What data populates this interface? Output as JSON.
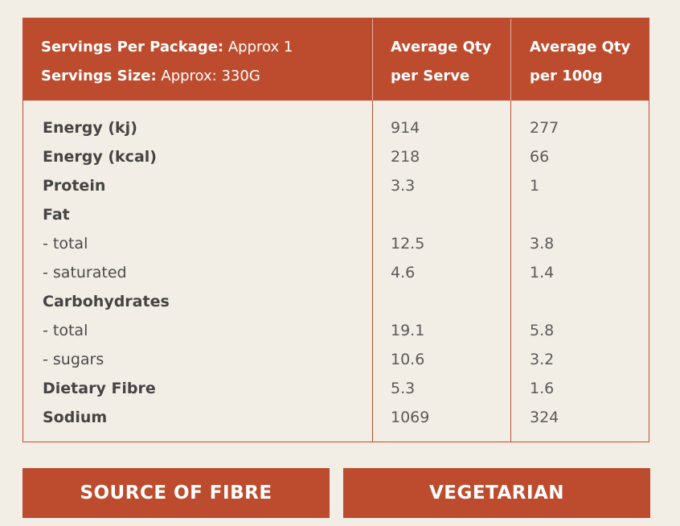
{
  "header": {
    "servings_per_package_label": "Servings Per Package:",
    "servings_per_package_value": "Approx 1",
    "serving_size_label": "Servings Size:",
    "serving_size_value": "Approx: 330G",
    "col1_line1": "Average Qty",
    "col1_line2": "per Serve",
    "col2_line1": "Average Qty",
    "col2_line2": "per 100g"
  },
  "rows": [
    {
      "name": "Energy (kj)",
      "bold": true,
      "per_serve": "914",
      "per_100g": "277"
    },
    {
      "name": "Energy (kcal)",
      "bold": true,
      "per_serve": "218",
      "per_100g": "66"
    },
    {
      "name": "Protein",
      "bold": true,
      "per_serve": "3.3",
      "per_100g": "1"
    },
    {
      "name": "Fat",
      "bold": true,
      "per_serve": "",
      "per_100g": ""
    },
    {
      "name": "- total",
      "bold": false,
      "per_serve": "12.5",
      "per_100g": "3.8"
    },
    {
      "name": "- saturated",
      "bold": false,
      "per_serve": "4.6",
      "per_100g": "1.4"
    },
    {
      "name": "Carbohydrates",
      "bold": true,
      "per_serve": "",
      "per_100g": ""
    },
    {
      "name": "- total",
      "bold": false,
      "per_serve": "19.1",
      "per_100g": "5.8"
    },
    {
      "name": "- sugars",
      "bold": false,
      "per_serve": "10.6",
      "per_100g": "3.2"
    },
    {
      "name": "Dietary Fibre",
      "bold": true,
      "per_serve": "5.3",
      "per_100g": "1.6"
    },
    {
      "name": "Sodium",
      "bold": true,
      "per_serve": "1069",
      "per_100g": "324"
    }
  ],
  "badges": {
    "left": "SOURCE OF FIBRE",
    "right": "VEGETARIAN"
  },
  "colors": {
    "accent": "#bd4c2e",
    "background": "#f2eee6"
  }
}
